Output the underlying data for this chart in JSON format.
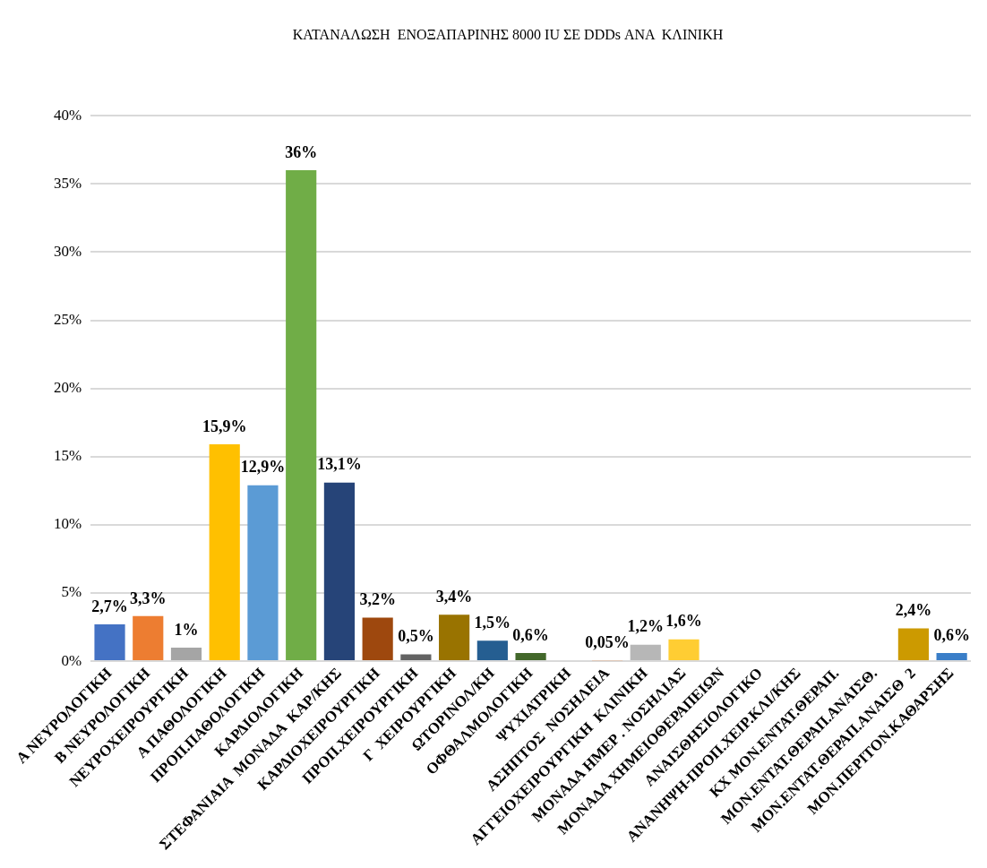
{
  "chart_data": {
    "type": "bar",
    "title": "ΚΑΤΑΝΑΛΩΣΗ  ΕΝΟΞΑΠΑΡΙΝΗΣ 8000 IU ΣΕ DDDs ΑΝΑ  ΚΛΙΝΙΚΗ",
    "categories": [
      "Α ΝΕΥΡΟΛΟΓΙΚΗ",
      "Β ΝΕΥΡΟΛΟΓΙΚΗ",
      "ΝΕΥΡΟΧΕΙΡΟΥΡΓΙΚΗ",
      "Α ΠΑΘΟΛΟΓΙΚΗ",
      "ΠΡΟΠ.ΠΑΘΟΛΟΓΙΚΗ",
      "ΚΑΡΔΙΟΛΟΓΙΚΗ",
      "ΣΤΕΦΑΝΙΑΙΑ  ΜΟΝΑΔΑ  ΚΑΡ/ΚΗΣ",
      "ΚΑΡΔΙΟΧΕΙΡΟΥΡΓΙΚΗ",
      "ΠΡΟΠ.ΧΕΙΡΟΥΡΓΙΚΗ",
      "Γ  ΧΕΙΡΟΥΡΓΙΚΗ",
      "ΩΤΟΡΙΝΟΛ/ΚΗ",
      "ΟΦΘΑΛΜΟΛΟΓΙΚΗ",
      "ΨΥΧΙΑΤΡΙΚΗ",
      "ΑΣΗΠΤΟΣ  ΝΟΣΗΛΕΙΑ",
      "ΑΓΓΕΙΟΧΕΙΡΟΥΡΓΙΚΗ  ΚΛΙΝΙΚΗ",
      "ΜΟΝΑΔΑ ΗΜΕΡ . ΝΟΣΗΛΙΑΣ",
      "ΜΟΝΑΔΑ ΧΗΜΕΙΟΘΕΡΑΠΕΙΩΝ",
      "ΑΝΑΙΣΘΗΣΙΟΛΟΓΙΚΟ",
      "ΑΝΑΝΗΨΗ-ΠΡΟΠ.ΧΕΙΡ.ΚΛΙ/ΚΗΣ",
      "ΚΧ ΜΟΝ.ΕΝΤΑΤ.ΘΕΡΑΠ.",
      "ΜΟΝ.ΕΝΤΑΤ.ΘΕΡΑΠ.ΑΝΑΙΣΘ.",
      "ΜΟΝ.ΕΝΤΑΤ.ΘΕΡΑΠ.ΑΝΑΙΣΘ  2",
      "ΜΟΝ.ΠΕΡΙΤΟΝ.ΚΑΘΑΡΣΗΣ"
    ],
    "values": [
      2.7,
      3.3,
      1,
      15.9,
      12.9,
      36,
      13.1,
      3.2,
      0.5,
      3.4,
      1.5,
      0.6,
      null,
      0.05,
      1.2,
      1.6,
      null,
      null,
      null,
      null,
      null,
      2.4,
      0.6
    ],
    "value_labels": [
      "2,7%",
      "3,3%",
      "1%",
      "15,9%",
      "12,9%",
      "36%",
      "13,1%",
      "3,2%",
      "0,5%",
      "3,4%",
      "1,5%",
      "0,6%",
      null,
      "0,05%",
      "1,2%",
      "1,6%",
      null,
      null,
      null,
      null,
      null,
      "2,4%",
      "0,6%"
    ],
    "colors": [
      "#4472c4",
      "#ed7d31",
      "#a5a5a5",
      "#ffc000",
      "#5b9bd5",
      "#70ad47",
      "#264478",
      "#9e480e",
      "#636363",
      "#997300",
      "#255e91",
      "#43682b",
      "#698ed0",
      "#f1975a",
      "#b7b7b7",
      "#ffcd33",
      "#7cafdd",
      "#8cc168",
      "#335aa1",
      "#c65911",
      "#848484",
      "#cc9a00",
      "#3a7ec8"
    ],
    "ylim": [
      0,
      40
    ],
    "yticks": [
      {
        "value": 0,
        "label": "0%"
      },
      {
        "value": 5,
        "label": "5%"
      },
      {
        "value": 10,
        "label": "10%"
      },
      {
        "value": 15,
        "label": "15%"
      },
      {
        "value": 20,
        "label": "20%"
      },
      {
        "value": 25,
        "label": "25%"
      },
      {
        "value": 30,
        "label": "30%"
      },
      {
        "value": 35,
        "label": "35%"
      },
      {
        "value": 40,
        "label": "40%"
      }
    ],
    "grid": "y",
    "legend": false
  }
}
